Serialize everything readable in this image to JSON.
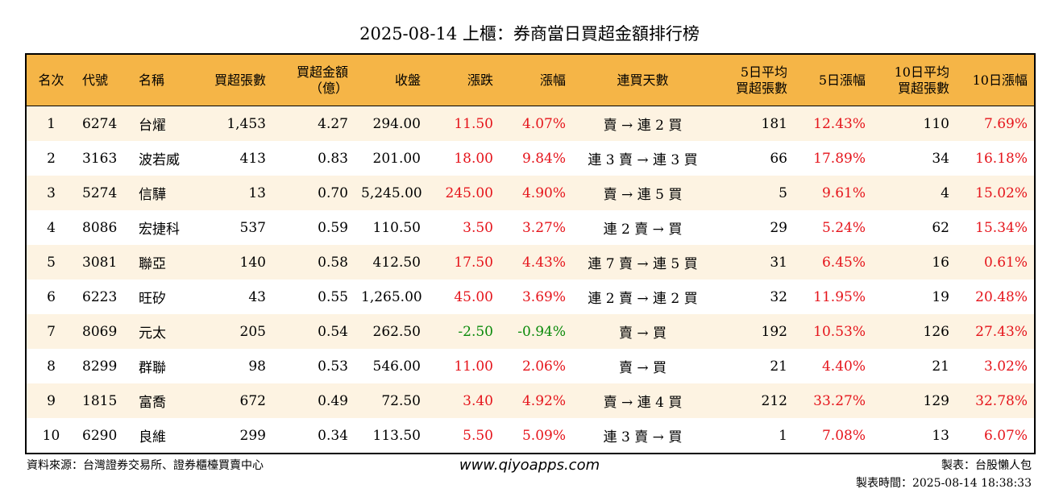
{
  "title": "2025-08-14 上櫃：券商當日買超金額排行榜",
  "headers": {
    "rank": "名次",
    "code": "代號",
    "name": "名稱",
    "net_buy_shares": "買超張數",
    "net_buy_amount_line1": "買超金額",
    "net_buy_amount_line2": "（億）",
    "close": "收盤",
    "change": "漲跌",
    "change_pct": "漲幅",
    "streak": "連買天數",
    "avg5_line1": "5日平均",
    "avg5_line2": "買超張數",
    "chg5": "5日漲幅",
    "avg10_line1": "10日平均",
    "avg10_line2": "買超張數",
    "chg10": "10日漲幅"
  },
  "colors": {
    "header_bg": "#f5b547",
    "row_alt_bg": "#fdf3e2",
    "up": "#e5141b",
    "down": "#0a8a0a"
  },
  "rows": [
    {
      "rank": "1",
      "code": "6274",
      "name": "台燿",
      "shares": "1,453",
      "amount": "4.27",
      "close": "294.00",
      "change": "11.50",
      "pct": "4.07%",
      "streak": "賣 → 連 2 買",
      "avg5": "181",
      "chg5": "12.43%",
      "avg10": "110",
      "chg10": "7.69%"
    },
    {
      "rank": "2",
      "code": "3163",
      "name": "波若威",
      "shares": "413",
      "amount": "0.83",
      "close": "201.00",
      "change": "18.00",
      "pct": "9.84%",
      "streak": "連 3 賣 → 連 3 買",
      "avg5": "66",
      "chg5": "17.89%",
      "avg10": "34",
      "chg10": "16.18%"
    },
    {
      "rank": "3",
      "code": "5274",
      "name": "信驊",
      "shares": "13",
      "amount": "0.70",
      "close": "5,245.00",
      "change": "245.00",
      "pct": "4.90%",
      "streak": "賣 → 連 5 買",
      "avg5": "5",
      "chg5": "9.61%",
      "avg10": "4",
      "chg10": "15.02%"
    },
    {
      "rank": "4",
      "code": "8086",
      "name": "宏捷科",
      "shares": "537",
      "amount": "0.59",
      "close": "110.50",
      "change": "3.50",
      "pct": "3.27%",
      "streak": "連 2 賣 → 買",
      "avg5": "29",
      "chg5": "5.24%",
      "avg10": "62",
      "chg10": "15.34%"
    },
    {
      "rank": "5",
      "code": "3081",
      "name": "聯亞",
      "shares": "140",
      "amount": "0.58",
      "close": "412.50",
      "change": "17.50",
      "pct": "4.43%",
      "streak": "連 7 賣 → 連 5 買",
      "avg5": "31",
      "chg5": "6.45%",
      "avg10": "16",
      "chg10": "0.61%"
    },
    {
      "rank": "6",
      "code": "6223",
      "name": "旺矽",
      "shares": "43",
      "amount": "0.55",
      "close": "1,265.00",
      "change": "45.00",
      "pct": "3.69%",
      "streak": "連 2 賣 → 連 2 買",
      "avg5": "32",
      "chg5": "11.95%",
      "avg10": "19",
      "chg10": "20.48%"
    },
    {
      "rank": "7",
      "code": "8069",
      "name": "元太",
      "shares": "205",
      "amount": "0.54",
      "close": "262.50",
      "change": "-2.50",
      "pct": "-0.94%",
      "streak": "賣 → 買",
      "avg5": "192",
      "chg5": "10.53%",
      "avg10": "126",
      "chg10": "27.43%"
    },
    {
      "rank": "8",
      "code": "8299",
      "name": "群聯",
      "shares": "98",
      "amount": "0.53",
      "close": "546.00",
      "change": "11.00",
      "pct": "2.06%",
      "streak": "賣 → 買",
      "avg5": "21",
      "chg5": "4.40%",
      "avg10": "21",
      "chg10": "3.02%"
    },
    {
      "rank": "9",
      "code": "1815",
      "name": "富喬",
      "shares": "672",
      "amount": "0.49",
      "close": "72.50",
      "change": "3.40",
      "pct": "4.92%",
      "streak": "賣 → 連 4 買",
      "avg5": "212",
      "chg5": "33.27%",
      "avg10": "129",
      "chg10": "32.78%"
    },
    {
      "rank": "10",
      "code": "6290",
      "name": "良維",
      "shares": "299",
      "amount": "0.34",
      "close": "113.50",
      "change": "5.50",
      "pct": "5.09%",
      "streak": "連 3 賣 → 買",
      "avg5": "1",
      "chg5": "7.08%",
      "avg10": "13",
      "chg10": "6.07%"
    }
  ],
  "footer": {
    "source": "資料來源：台灣證券交易所、證券櫃檯買賣中心",
    "website": "www.qiyoapps.com",
    "author": "製表：台股懶人包",
    "timestamp": "製表時間：2025-08-14 18:38:33"
  }
}
